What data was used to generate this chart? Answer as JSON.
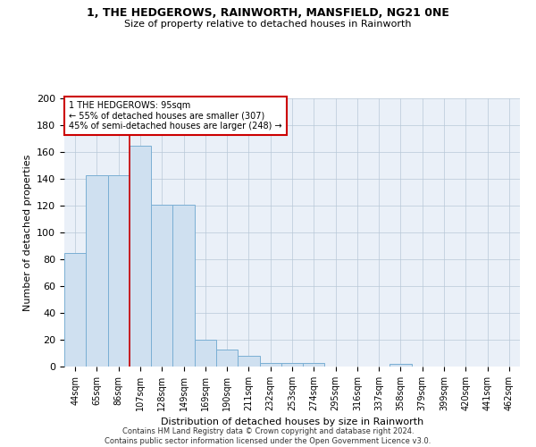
{
  "title": "1, THE HEDGEROWS, RAINWORTH, MANSFIELD, NG21 0NE",
  "subtitle": "Size of property relative to detached houses in Rainworth",
  "xlabel": "Distribution of detached houses by size in Rainworth",
  "ylabel": "Number of detached properties",
  "categories": [
    "44sqm",
    "65sqm",
    "86sqm",
    "107sqm",
    "128sqm",
    "149sqm",
    "169sqm",
    "190sqm",
    "211sqm",
    "232sqm",
    "253sqm",
    "274sqm",
    "295sqm",
    "316sqm",
    "337sqm",
    "358sqm",
    "379sqm",
    "399sqm",
    "420sqm",
    "441sqm",
    "462sqm"
  ],
  "values": [
    85,
    143,
    143,
    165,
    121,
    121,
    20,
    13,
    8,
    3,
    3,
    3,
    0,
    0,
    0,
    2,
    0,
    0,
    0,
    0,
    0
  ],
  "bar_color": "#cfe0f0",
  "bar_edge_color": "#7aafd4",
  "annotation_text": "1 THE HEDGEROWS: 95sqm\n← 55% of detached houses are smaller (307)\n45% of semi-detached houses are larger (248) →",
  "annotation_box_color": "#ffffff",
  "annotation_box_edge": "#cc0000",
  "red_line_color": "#cc0000",
  "footer_line1": "Contains HM Land Registry data © Crown copyright and database right 2024.",
  "footer_line2": "Contains public sector information licensed under the Open Government Licence v3.0.",
  "background_color": "#eaf0f8",
  "ylim": [
    0,
    200
  ],
  "yticks": [
    0,
    20,
    40,
    60,
    80,
    100,
    120,
    140,
    160,
    180,
    200
  ],
  "title_fontsize": 9,
  "subtitle_fontsize": 8,
  "tick_fontsize": 7,
  "ylabel_fontsize": 8,
  "xlabel_fontsize": 8,
  "footer_fontsize": 6,
  "annot_fontsize": 7,
  "red_line_x": 3.5
}
